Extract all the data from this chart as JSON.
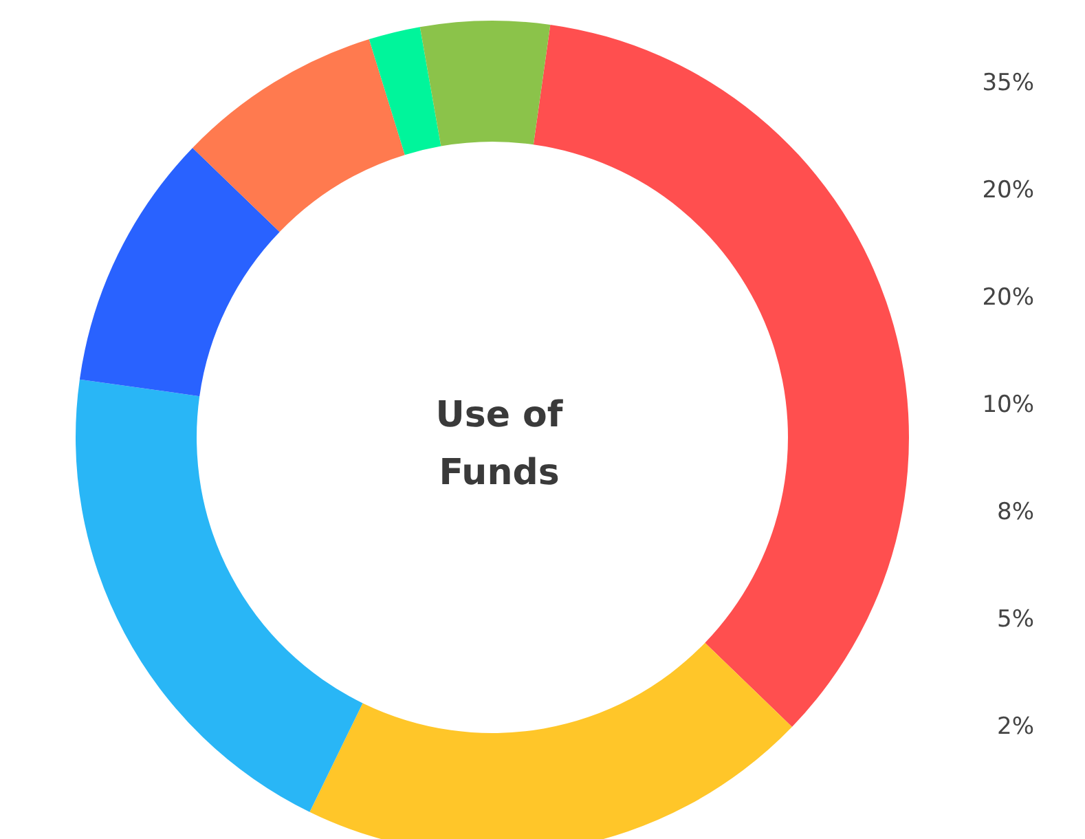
{
  "chart_data": {
    "type": "donut",
    "title": "Use of\nFunds",
    "categories": [
      null,
      null,
      null,
      null,
      null,
      null,
      null
    ],
    "values": [
      35,
      20,
      20,
      10,
      8,
      2,
      5
    ],
    "colors": [
      "#ff4f4f",
      "#ffc629",
      "#29b6f6",
      "#2962ff",
      "#ff7a4f",
      "#00f59b",
      "#8bc34a"
    ],
    "annotations": [
      "35%",
      "20%",
      "20%",
      "10%",
      "8%",
      "5%",
      "2%"
    ]
  }
}
